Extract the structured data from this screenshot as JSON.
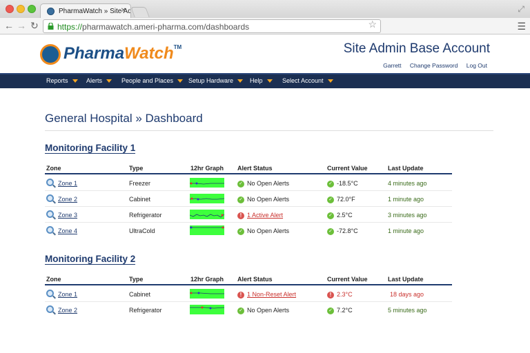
{
  "browser": {
    "tab_title": "PharmaWatch » Site Admin",
    "url_scheme": "https://",
    "url_rest": "pharmawatch.ameri-pharma.com/dashboards"
  },
  "header": {
    "logo_pharma": "Pharma",
    "logo_watch": "Watch",
    "logo_tm": "TM",
    "account_title": "Site Admin Base Account",
    "links": [
      "Garrett",
      "Change Password",
      "Log Out"
    ]
  },
  "nav": {
    "items": [
      "Reports",
      "Alerts",
      "People and Places",
      "Setup Hardware",
      "Help",
      "Select Account"
    ]
  },
  "page": {
    "title": "General Hospital » Dashboard"
  },
  "columns": [
    "Zone",
    "Type",
    "12hr Graph",
    "Alert Status",
    "Current Value",
    "Last Update"
  ],
  "facilities": [
    {
      "name": "Monitoring Facility 1",
      "rows": [
        {
          "zone": "Zone 1",
          "type": "Freezer",
          "status": "No Open Alerts",
          "status_ok": true,
          "value": "-18.5°C",
          "value_ok": true,
          "updated": "4 minutes ago"
        },
        {
          "zone": "Zone 2",
          "type": "Cabinet",
          "status": "No Open Alerts",
          "status_ok": true,
          "value": "72.0°F",
          "value_ok": true,
          "updated": "1 minute ago"
        },
        {
          "zone": "Zone 3",
          "type": "Refrigerator",
          "status": "1 Active Alert",
          "status_ok": false,
          "value": "2.5°C",
          "value_ok": true,
          "updated": "3 minutes ago"
        },
        {
          "zone": "Zone 4",
          "type": "UltraCold",
          "status": "No Open Alerts",
          "status_ok": true,
          "value": "-72.8°C",
          "value_ok": true,
          "updated": "1 minute ago"
        }
      ]
    },
    {
      "name": "Monitoring Facility 2",
      "rows": [
        {
          "zone": "Zone 1",
          "type": "Cabinet",
          "status": "1 Non-Reset Alert",
          "status_ok": false,
          "value": "2.3°C",
          "value_ok": false,
          "updated": "18 days ago"
        },
        {
          "zone": "Zone 2",
          "type": "Refrigerator",
          "status": "No Open Alerts",
          "status_ok": true,
          "value": "7.2°C",
          "value_ok": true,
          "updated": "5 minutes ago"
        }
      ]
    }
  ],
  "colors": {
    "brand_navy": "#1e3a6e",
    "brand_orange": "#f08a1c",
    "graph_bg": "#3dff3d",
    "ok_green": "#6cbf3a",
    "alert_red": "#c9302c"
  }
}
